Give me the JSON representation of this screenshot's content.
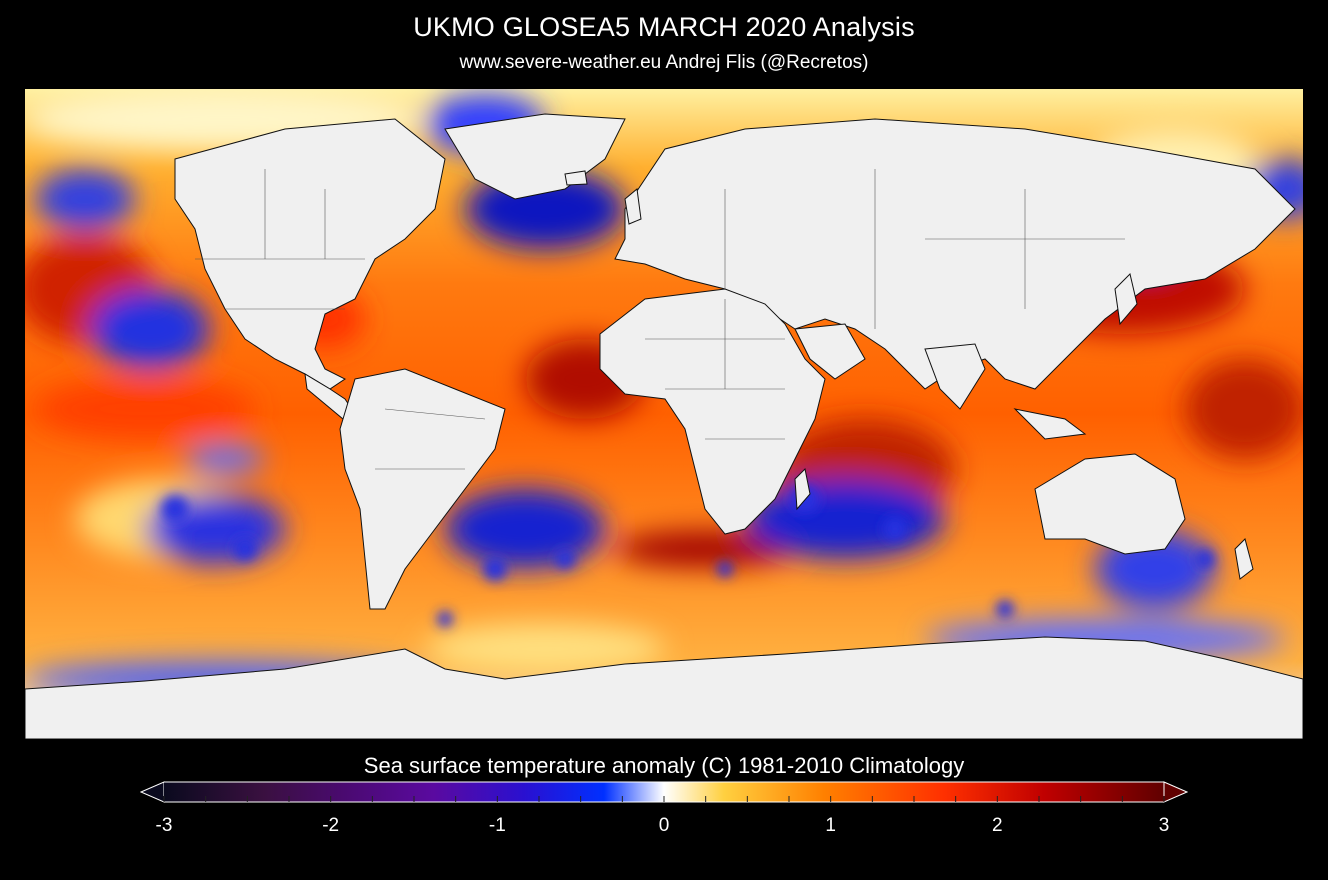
{
  "header": {
    "title": "UKMO GLOSEA5  MARCH 2020 Analysis",
    "subtitle": "www.severe-weather.eu   Andrej Flis (@Recretos)"
  },
  "legend": {
    "label": "Sea surface temperature anomaly (C) 1981-2010 Climatology",
    "ticks": [
      "-3",
      "-2",
      "-1",
      "0",
      "1",
      "2",
      "3"
    ],
    "tick_values": [
      -3,
      -2,
      -1,
      0,
      1,
      2,
      3
    ],
    "range": [
      -3,
      3
    ],
    "colors": [
      "#0a0a1e",
      "#3a1040",
      "#5a0aa0",
      "#2a10d0",
      "#0030ff",
      "#ffffff",
      "#ffd040",
      "#ff8000",
      "#ff3000",
      "#c00000",
      "#600000"
    ]
  },
  "map": {
    "projection": "equirectangular",
    "land_color": "#f0f0f0",
    "border_color": "#000000"
  }
}
